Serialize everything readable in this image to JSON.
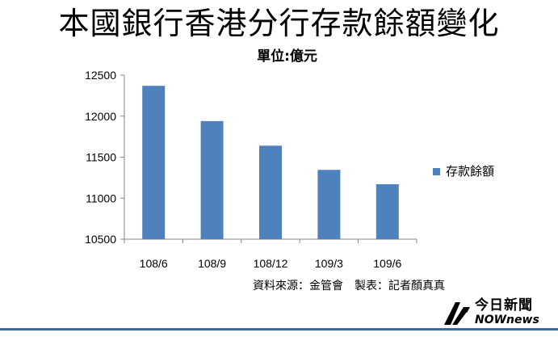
{
  "chart_data": {
    "type": "bar",
    "title": "本國銀行香港分行存款餘額變化",
    "subtitle": "單位:億元",
    "categories": [
      "108/6",
      "108/9",
      "108/12",
      "109/3",
      "109/6"
    ],
    "series": [
      {
        "name": "存款餘額",
        "values": [
          12370,
          11940,
          11640,
          11345,
          11170
        ],
        "color": "#4f81bd"
      }
    ],
    "ylim": [
      10500,
      12500
    ],
    "yticks": [
      10500,
      11000,
      11500,
      12000,
      12500
    ],
    "grid": false,
    "legend": "right"
  },
  "source": "資料來源：金管會　製表：記者顏真真",
  "logo": {
    "cn": "今日新聞",
    "en": "NOWnews"
  },
  "colors": {
    "bar": "#4f81bd",
    "rule": "#3b6aa4"
  }
}
